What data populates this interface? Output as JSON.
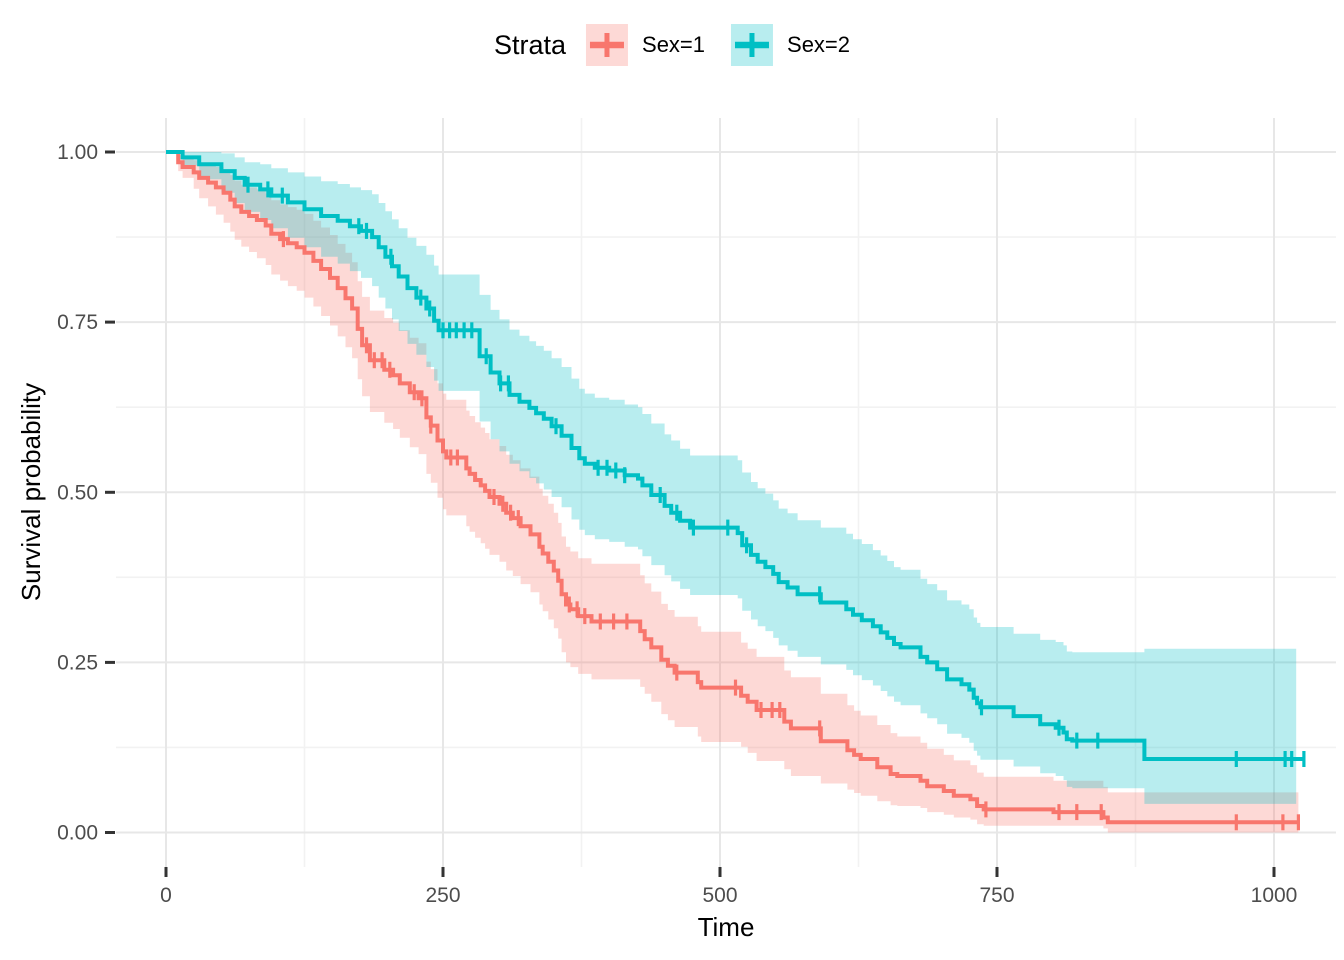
{
  "legend": {
    "title": "Strata",
    "position": "top",
    "items": [
      {
        "label": "Sex=1",
        "color": "#F8766D",
        "band_color": "rgba(248,118,109,0.28)"
      },
      {
        "label": "Sex=2",
        "color": "#00BFC4",
        "band_color": "rgba(0,191,196,0.28)"
      }
    ]
  },
  "colors": {
    "background": "#FFFFFF",
    "grid_major": "#E7E7E7",
    "grid_minor": "#F2F2F2",
    "tick_mark": "#333333",
    "tick_label": "#4D4D4D",
    "axis_title": "#000000",
    "sex1": "#F8766D",
    "sex2": "#00BFC4"
  },
  "chart_data": {
    "type": "line",
    "subtype": "kaplan-meier-step",
    "title": "",
    "xlabel": "Time",
    "ylabel": "Survival probability",
    "xlim": [
      0,
      1027
    ],
    "ylim": [
      0,
      1
    ],
    "grid": true,
    "legend_position": "top",
    "x_ticks": {
      "values": [
        0,
        250,
        500,
        750,
        1000
      ],
      "labels": [
        "0",
        "250",
        "500",
        "750",
        "1000"
      ]
    },
    "y_ticks": {
      "values": [
        0,
        0.25,
        0.5,
        0.75,
        1
      ],
      "labels": [
        "0.00",
        "0.25",
        "0.50",
        "0.75",
        "1.00"
      ]
    },
    "x_minor": [
      125,
      375,
      625,
      875
    ],
    "y_minor": [
      0.125,
      0.375,
      0.625,
      0.875
    ],
    "series": [
      {
        "name": "Sex=1",
        "color": "#F8766D",
        "band_color": "rgba(248,118,109,0.28)",
        "end": 1022,
        "band_end": 1022,
        "points": [
          [
            0,
            1.0,
            1.0,
            1.0
          ],
          [
            11,
            0.985,
            0.972,
            0.995
          ],
          [
            15,
            0.978,
            0.962,
            0.99
          ],
          [
            25,
            0.97,
            0.946,
            0.988
          ],
          [
            30,
            0.962,
            0.932,
            0.984
          ],
          [
            38,
            0.955,
            0.92,
            0.981
          ],
          [
            45,
            0.948,
            0.908,
            0.978
          ],
          [
            52,
            0.94,
            0.896,
            0.973
          ],
          [
            58,
            0.93,
            0.883,
            0.966
          ],
          [
            62,
            0.92,
            0.871,
            0.958
          ],
          [
            68,
            0.912,
            0.861,
            0.952
          ],
          [
            75,
            0.906,
            0.853,
            0.948
          ],
          [
            82,
            0.9,
            0.844,
            0.945
          ],
          [
            90,
            0.892,
            0.834,
            0.939
          ],
          [
            95,
            0.88,
            0.82,
            0.929
          ],
          [
            103,
            0.872,
            0.811,
            0.923
          ],
          [
            110,
            0.866,
            0.803,
            0.919
          ],
          [
            118,
            0.86,
            0.796,
            0.915
          ],
          [
            125,
            0.852,
            0.786,
            0.909
          ],
          [
            133,
            0.84,
            0.773,
            0.899
          ],
          [
            140,
            0.828,
            0.759,
            0.889
          ],
          [
            148,
            0.815,
            0.745,
            0.878
          ],
          [
            155,
            0.8,
            0.729,
            0.865
          ],
          [
            162,
            0.785,
            0.713,
            0.852
          ],
          [
            168,
            0.77,
            0.697,
            0.838
          ],
          [
            173,
            0.74,
            0.666,
            0.81
          ],
          [
            177,
            0.716,
            0.641,
            0.787
          ],
          [
            184,
            0.694,
            0.618,
            0.767
          ],
          [
            197,
            0.68,
            0.602,
            0.756
          ],
          [
            205,
            0.672,
            0.593,
            0.749
          ],
          [
            211,
            0.66,
            0.58,
            0.738
          ],
          [
            220,
            0.647,
            0.566,
            0.727
          ],
          [
            228,
            0.638,
            0.556,
            0.719
          ],
          [
            235,
            0.61,
            0.527,
            0.692
          ],
          [
            239,
            0.598,
            0.514,
            0.681
          ],
          [
            245,
            0.576,
            0.492,
            0.66
          ],
          [
            250,
            0.56,
            0.475,
            0.645
          ],
          [
            253,
            0.551,
            0.466,
            0.636
          ],
          [
            271,
            0.535,
            0.45,
            0.62
          ],
          [
            274,
            0.527,
            0.442,
            0.612
          ],
          [
            279,
            0.518,
            0.433,
            0.603
          ],
          [
            284,
            0.51,
            0.425,
            0.595
          ],
          [
            288,
            0.502,
            0.417,
            0.587
          ],
          [
            292,
            0.493,
            0.408,
            0.578
          ],
          [
            301,
            0.483,
            0.398,
            0.568
          ],
          [
            307,
            0.47,
            0.385,
            0.555
          ],
          [
            313,
            0.462,
            0.377,
            0.547
          ],
          [
            320,
            0.45,
            0.365,
            0.535
          ],
          [
            329,
            0.438,
            0.353,
            0.523
          ],
          [
            337,
            0.42,
            0.335,
            0.505
          ],
          [
            340,
            0.41,
            0.325,
            0.495
          ],
          [
            345,
            0.398,
            0.313,
            0.483
          ],
          [
            350,
            0.385,
            0.3,
            0.47
          ],
          [
            354,
            0.37,
            0.285,
            0.455
          ],
          [
            357,
            0.35,
            0.265,
            0.435
          ],
          [
            361,
            0.335,
            0.25,
            0.42
          ],
          [
            365,
            0.328,
            0.243,
            0.413
          ],
          [
            372,
            0.318,
            0.233,
            0.403
          ],
          [
            384,
            0.31,
            0.225,
            0.395
          ],
          [
            428,
            0.296,
            0.214,
            0.378
          ],
          [
            432,
            0.284,
            0.204,
            0.366
          ],
          [
            438,
            0.272,
            0.192,
            0.354
          ],
          [
            447,
            0.254,
            0.174,
            0.336
          ],
          [
            453,
            0.245,
            0.165,
            0.327
          ],
          [
            459,
            0.235,
            0.155,
            0.317
          ],
          [
            480,
            0.221,
            0.141,
            0.303
          ],
          [
            483,
            0.213,
            0.133,
            0.295
          ],
          [
            519,
            0.201,
            0.126,
            0.279
          ],
          [
            525,
            0.192,
            0.117,
            0.27
          ],
          [
            533,
            0.18,
            0.105,
            0.258
          ],
          [
            558,
            0.163,
            0.093,
            0.238
          ],
          [
            564,
            0.153,
            0.083,
            0.228
          ],
          [
            591,
            0.134,
            0.072,
            0.204
          ],
          [
            615,
            0.121,
            0.063,
            0.187
          ],
          [
            621,
            0.114,
            0.058,
            0.179
          ],
          [
            627,
            0.108,
            0.054,
            0.172
          ],
          [
            642,
            0.096,
            0.046,
            0.158
          ],
          [
            654,
            0.086,
            0.04,
            0.146
          ],
          [
            660,
            0.083,
            0.039,
            0.141
          ],
          [
            681,
            0.076,
            0.036,
            0.132
          ],
          [
            687,
            0.068,
            0.03,
            0.123
          ],
          [
            702,
            0.061,
            0.026,
            0.114
          ],
          [
            711,
            0.054,
            0.022,
            0.106
          ],
          [
            726,
            0.049,
            0.019,
            0.099
          ],
          [
            732,
            0.039,
            0.012,
            0.088
          ],
          [
            738,
            0.034,
            0.01,
            0.082
          ],
          [
            801,
            0.03,
            0.01,
            0.076
          ],
          [
            846,
            0.022,
            0.006,
            0.067
          ],
          [
            850,
            0.015,
            0.0,
            0.059
          ]
        ],
        "censor_times": [
          106,
          181,
          188,
          195,
          202,
          224,
          231,
          239,
          257,
          263,
          296,
          304,
          311,
          318,
          364,
          371,
          378,
          392,
          404,
          416,
          461,
          514,
          537,
          547,
          554,
          590,
          740,
          806,
          822,
          844,
          966,
          1008,
          1022
        ]
      },
      {
        "name": "Sex=2",
        "color": "#00BFC4",
        "band_color": "rgba(0,191,196,0.28)",
        "end": 1027,
        "band_end": 1020,
        "points": [
          [
            0,
            1.0,
            1.0,
            1.0
          ],
          [
            15,
            0.992,
            0.98,
            1.0
          ],
          [
            30,
            0.982,
            0.96,
            1.0
          ],
          [
            50,
            0.972,
            0.94,
            0.998
          ],
          [
            62,
            0.962,
            0.925,
            0.992
          ],
          [
            71,
            0.952,
            0.912,
            0.985
          ],
          [
            85,
            0.945,
            0.9,
            0.982
          ],
          [
            95,
            0.936,
            0.888,
            0.976
          ],
          [
            110,
            0.926,
            0.874,
            0.97
          ],
          [
            125,
            0.916,
            0.86,
            0.964
          ],
          [
            140,
            0.906,
            0.846,
            0.957
          ],
          [
            155,
            0.899,
            0.836,
            0.953
          ],
          [
            166,
            0.891,
            0.825,
            0.948
          ],
          [
            176,
            0.884,
            0.815,
            0.944
          ],
          [
            186,
            0.875,
            0.803,
            0.938
          ],
          [
            192,
            0.86,
            0.786,
            0.925
          ],
          [
            198,
            0.846,
            0.77,
            0.913
          ],
          [
            204,
            0.832,
            0.754,
            0.901
          ],
          [
            210,
            0.817,
            0.737,
            0.888
          ],
          [
            218,
            0.8,
            0.718,
            0.874
          ],
          [
            226,
            0.786,
            0.702,
            0.862
          ],
          [
            235,
            0.77,
            0.684,
            0.849
          ],
          [
            242,
            0.752,
            0.664,
            0.833
          ],
          [
            246,
            0.738,
            0.649,
            0.82
          ],
          [
            283,
            0.7,
            0.604,
            0.79
          ],
          [
            293,
            0.676,
            0.578,
            0.768
          ],
          [
            301,
            0.66,
            0.56,
            0.754
          ],
          [
            310,
            0.643,
            0.542,
            0.739
          ],
          [
            319,
            0.633,
            0.531,
            0.73
          ],
          [
            328,
            0.624,
            0.521,
            0.722
          ],
          [
            334,
            0.616,
            0.513,
            0.715
          ],
          [
            341,
            0.608,
            0.504,
            0.708
          ],
          [
            348,
            0.597,
            0.493,
            0.697
          ],
          [
            357,
            0.583,
            0.478,
            0.684
          ],
          [
            366,
            0.565,
            0.46,
            0.667
          ],
          [
            373,
            0.55,
            0.445,
            0.652
          ],
          [
            378,
            0.542,
            0.437,
            0.645
          ],
          [
            387,
            0.536,
            0.431,
            0.639
          ],
          [
            400,
            0.532,
            0.427,
            0.636
          ],
          [
            414,
            0.525,
            0.42,
            0.629
          ],
          [
            426,
            0.52,
            0.416,
            0.625
          ],
          [
            430,
            0.51,
            0.406,
            0.615
          ],
          [
            438,
            0.496,
            0.393,
            0.601
          ],
          [
            450,
            0.48,
            0.378,
            0.585
          ],
          [
            456,
            0.47,
            0.369,
            0.576
          ],
          [
            464,
            0.458,
            0.358,
            0.564
          ],
          [
            473,
            0.448,
            0.349,
            0.554
          ],
          [
            516,
            0.44,
            0.344,
            0.547
          ],
          [
            520,
            0.422,
            0.326,
            0.529
          ],
          [
            528,
            0.408,
            0.313,
            0.515
          ],
          [
            534,
            0.398,
            0.303,
            0.506
          ],
          [
            541,
            0.39,
            0.296,
            0.498
          ],
          [
            548,
            0.38,
            0.286,
            0.488
          ],
          [
            553,
            0.368,
            0.275,
            0.476
          ],
          [
            561,
            0.36,
            0.267,
            0.469
          ],
          [
            570,
            0.35,
            0.258,
            0.459
          ],
          [
            591,
            0.338,
            0.247,
            0.448
          ],
          [
            614,
            0.328,
            0.239,
            0.439
          ],
          [
            620,
            0.32,
            0.231,
            0.431
          ],
          [
            628,
            0.312,
            0.224,
            0.424
          ],
          [
            638,
            0.303,
            0.216,
            0.415
          ],
          [
            645,
            0.294,
            0.208,
            0.407
          ],
          [
            651,
            0.286,
            0.2,
            0.399
          ],
          [
            657,
            0.277,
            0.192,
            0.39
          ],
          [
            663,
            0.272,
            0.187,
            0.386
          ],
          [
            681,
            0.258,
            0.175,
            0.373
          ],
          [
            687,
            0.25,
            0.168,
            0.365
          ],
          [
            696,
            0.24,
            0.159,
            0.356
          ],
          [
            705,
            0.225,
            0.145,
            0.341
          ],
          [
            718,
            0.218,
            0.139,
            0.335
          ],
          [
            725,
            0.21,
            0.132,
            0.328
          ],
          [
            729,
            0.198,
            0.12,
            0.316
          ],
          [
            732,
            0.19,
            0.113,
            0.308
          ],
          [
            735,
            0.184,
            0.107,
            0.302
          ],
          [
            765,
            0.171,
            0.097,
            0.292
          ],
          [
            789,
            0.159,
            0.087,
            0.283
          ],
          [
            803,
            0.154,
            0.083,
            0.28
          ],
          [
            810,
            0.147,
            0.077,
            0.275
          ],
          [
            813,
            0.137,
            0.067,
            0.266
          ],
          [
            818,
            0.135,
            0.065,
            0.265
          ],
          [
            883,
            0.108,
            0.042,
            0.27
          ]
        ],
        "censor_times": [
          74,
          92,
          105,
          174,
          181,
          203,
          230,
          238,
          250,
          256,
          262,
          269,
          276,
          289,
          302,
          309,
          352,
          390,
          398,
          406,
          414,
          446,
          461,
          476,
          507,
          524,
          590,
          736,
          806,
          822,
          841,
          966,
          1010,
          1016,
          1027
        ]
      }
    ]
  }
}
